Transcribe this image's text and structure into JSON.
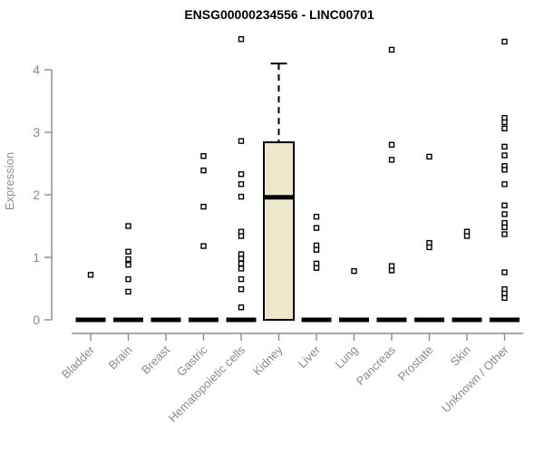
{
  "chart_data": {
    "type": "boxplot",
    "title": "ENSG00000234556 - LINC00701",
    "ylabel": "Expression",
    "xlabel": "",
    "ylim": [
      0,
      4.6
    ],
    "yticks": [
      0,
      1,
      2,
      3,
      4
    ],
    "grid": false,
    "legend": null,
    "categories": [
      "Bladder",
      "Brain",
      "Breast",
      "Gastric",
      "Hematopoietic cells",
      "Kidney",
      "Liver",
      "Lung",
      "Pancreas",
      "Prostate",
      "Skin",
      "Unknown / Other"
    ],
    "boxes": [
      {
        "category": "Bladder",
        "q1": 0,
        "median": 0,
        "q3": 0,
        "whisker_low": 0,
        "whisker_high": 0,
        "outliers": [
          0.72
        ]
      },
      {
        "category": "Brain",
        "q1": 0,
        "median": 0,
        "q3": 0,
        "whisker_low": 0,
        "whisker_high": 0,
        "outliers": [
          1.5,
          1.09,
          0.97,
          0.88,
          0.65,
          0.45
        ]
      },
      {
        "category": "Breast",
        "q1": 0,
        "median": 0,
        "q3": 0,
        "whisker_low": 0,
        "whisker_high": 0,
        "outliers": []
      },
      {
        "category": "Gastric",
        "q1": 0,
        "median": 0,
        "q3": 0,
        "whisker_low": 0,
        "whisker_high": 0,
        "outliers": [
          2.62,
          2.39,
          1.81,
          1.18
        ]
      },
      {
        "category": "Hematopoietic cells",
        "q1": 0,
        "median": 0,
        "q3": 0,
        "whisker_low": 0,
        "whisker_high": 0,
        "outliers": [
          4.49,
          2.86,
          2.33,
          2.17,
          1.97,
          1.41,
          1.34,
          1.05,
          0.98,
          0.9,
          0.82,
          0.65,
          0.49,
          0.2
        ]
      },
      {
        "category": "Kidney",
        "q1": 0,
        "median": 1.96,
        "q3": 2.84,
        "whisker_low": 0,
        "whisker_high": 4.1,
        "outliers": []
      },
      {
        "category": "Liver",
        "q1": 0,
        "median": 0,
        "q3": 0,
        "whisker_low": 0,
        "whisker_high": 0,
        "outliers": [
          1.65,
          1.47,
          1.19,
          1.12,
          0.9,
          0.83
        ]
      },
      {
        "category": "Lung",
        "q1": 0,
        "median": 0,
        "q3": 0,
        "whisker_low": 0,
        "whisker_high": 0,
        "outliers": [
          0.78
        ]
      },
      {
        "category": "Pancreas",
        "q1": 0,
        "median": 0,
        "q3": 0,
        "whisker_low": 0,
        "whisker_high": 0,
        "outliers": [
          4.32,
          2.8,
          2.56,
          0.86,
          0.79
        ]
      },
      {
        "category": "Prostate",
        "q1": 0,
        "median": 0,
        "q3": 0,
        "whisker_low": 0,
        "whisker_high": 0,
        "outliers": [
          2.61,
          1.23,
          1.16
        ]
      },
      {
        "category": "Skin",
        "q1": 0,
        "median": 0,
        "q3": 0,
        "whisker_low": 0,
        "whisker_high": 0,
        "outliers": [
          1.41,
          1.34
        ]
      },
      {
        "category": "Unknown / Other",
        "q1": 0,
        "median": 0,
        "q3": 0,
        "whisker_low": 0,
        "whisker_high": 0,
        "outliers": [
          4.45,
          3.23,
          3.16,
          3.06,
          2.77,
          2.63,
          2.46,
          2.4,
          2.17,
          1.83,
          1.69,
          1.55,
          1.48,
          1.37,
          0.76,
          0.49,
          0.42,
          0.35
        ]
      }
    ],
    "colors": {
      "box_fill": "#ede8cc",
      "box_stroke": "#000000",
      "median": "#000000",
      "zero_bar": "#000000",
      "outlier_stroke": "#000000",
      "outlier_fill": "#ffffff",
      "axis": "#8a8a8a",
      "tick_text": "#8a8a8a",
      "title_text": "#000000"
    },
    "marker_shape": "open-square"
  }
}
